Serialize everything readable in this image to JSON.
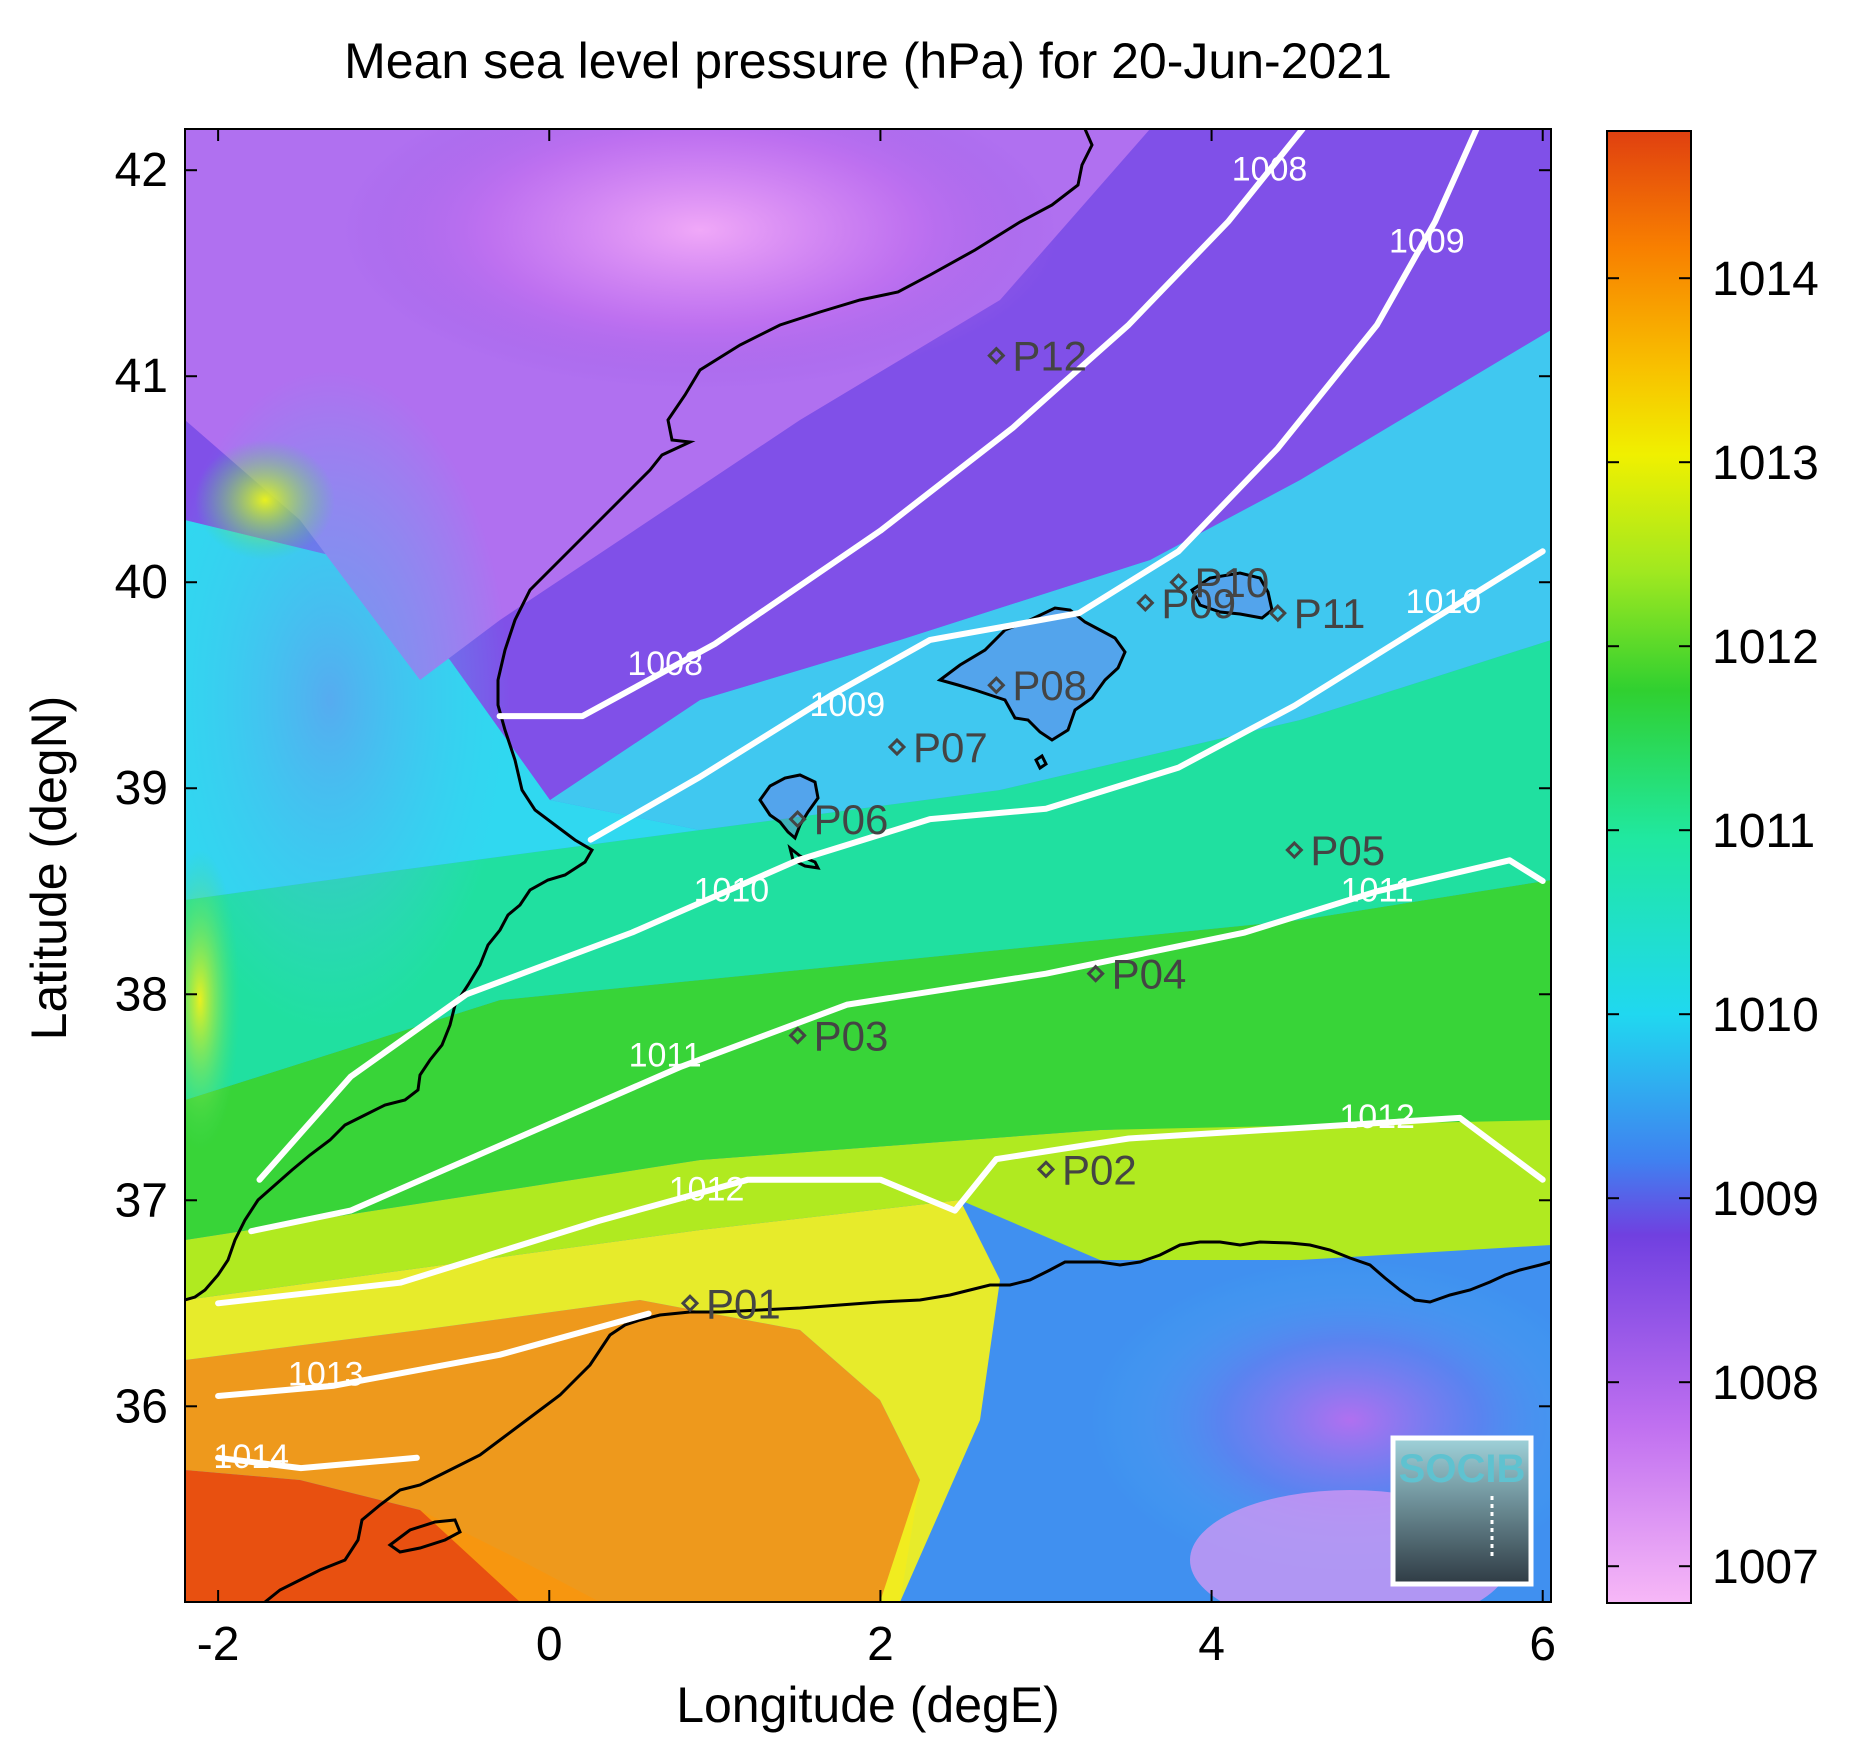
{
  "title": "Mean sea level pressure (hPa) for 20-Jun-2021",
  "xlabel": "Longitude (degE)",
  "ylabel": "Latitude (degN)",
  "x_ticks": [
    "-2",
    "0",
    "2",
    "4",
    "6"
  ],
  "y_ticks": [
    "36",
    "37",
    "38",
    "39",
    "40",
    "41",
    "42"
  ],
  "colorbar_ticks": [
    "1007",
    "1008",
    "1009",
    "1010",
    "1011",
    "1012",
    "1013",
    "1014"
  ],
  "logo_text": "SOCIB",
  "colors": {
    "contour": "#ffffff",
    "coastline": "#000000",
    "station": "#444444",
    "colormap": [
      "#f7b8f7",
      "#c070f0",
      "#7040e0",
      "#4080f0",
      "#20e0f0",
      "#20e8a0",
      "#30d030",
      "#a0e820",
      "#f0f000",
      "#f8c000",
      "#f88000",
      "#e04010"
    ]
  },
  "chart_data": {
    "type": "map",
    "xlim": [
      -2.2,
      6.05
    ],
    "ylim": [
      35.05,
      42.2
    ],
    "clim": [
      1006.8,
      1014.8
    ],
    "colorbar_ticks": [
      1007,
      1008,
      1009,
      1010,
      1011,
      1012,
      1013,
      1014
    ],
    "stations": [
      {
        "name": "P01",
        "lon": 0.85,
        "lat": 36.5
      },
      {
        "name": "P02",
        "lon": 3.0,
        "lat": 37.15
      },
      {
        "name": "P03",
        "lon": 1.5,
        "lat": 37.8
      },
      {
        "name": "P04",
        "lon": 3.3,
        "lat": 38.1
      },
      {
        "name": "P05",
        "lon": 4.5,
        "lat": 38.7
      },
      {
        "name": "P06",
        "lon": 1.5,
        "lat": 38.85
      },
      {
        "name": "P07",
        "lon": 2.1,
        "lat": 39.2
      },
      {
        "name": "P08",
        "lon": 2.7,
        "lat": 39.5
      },
      {
        "name": "P09",
        "lon": 3.6,
        "lat": 39.9
      },
      {
        "name": "P10",
        "lon": 3.8,
        "lat": 40.0
      },
      {
        "name": "P11",
        "lon": 4.4,
        "lat": 39.85
      },
      {
        "name": "P12",
        "lon": 2.7,
        "lat": 41.1
      }
    ],
    "contours": [
      {
        "level": "1008",
        "points": [
          [
            -0.3,
            39.35
          ],
          [
            0.2,
            39.35
          ],
          [
            1.0,
            39.7
          ],
          [
            2.0,
            40.25
          ],
          [
            2.8,
            40.75
          ],
          [
            3.5,
            41.25
          ],
          [
            4.1,
            41.75
          ],
          [
            4.55,
            42.2
          ]
        ],
        "label_at": [
          [
            0.7,
            39.55
          ],
          [
            4.35,
            41.95
          ]
        ]
      },
      {
        "name": "1009",
        "level": "1009",
        "points": [
          [
            0.25,
            38.75
          ],
          [
            0.9,
            39.05
          ],
          [
            1.7,
            39.45
          ],
          [
            2.3,
            39.72
          ],
          [
            3.2,
            39.85
          ],
          [
            3.8,
            40.15
          ],
          [
            4.4,
            40.65
          ],
          [
            5.0,
            41.25
          ],
          [
            5.35,
            41.75
          ],
          [
            5.6,
            42.2
          ]
        ],
        "label_at": [
          [
            1.8,
            39.35
          ],
          [
            5.3,
            41.6
          ]
        ]
      },
      {
        "level": "1010",
        "points": [
          [
            -1.75,
            37.1
          ],
          [
            -1.2,
            37.6
          ],
          [
            -0.5,
            38.0
          ],
          [
            0.5,
            38.3
          ],
          [
            1.5,
            38.65
          ],
          [
            2.3,
            38.85
          ],
          [
            3.0,
            38.9
          ],
          [
            3.8,
            39.1
          ],
          [
            4.5,
            39.4
          ],
          [
            5.2,
            39.75
          ],
          [
            6.0,
            40.15
          ]
        ],
        "label_at": [
          [
            1.1,
            38.45
          ],
          [
            5.4,
            39.85
          ]
        ]
      },
      {
        "level": "1011",
        "points": [
          [
            -1.8,
            36.85
          ],
          [
            -1.2,
            36.95
          ],
          [
            -0.2,
            37.3
          ],
          [
            0.8,
            37.65
          ],
          [
            1.8,
            37.95
          ],
          [
            3.0,
            38.1
          ],
          [
            4.2,
            38.3
          ],
          [
            5.0,
            38.5
          ],
          [
            5.8,
            38.65
          ],
          [
            6.0,
            38.55
          ]
        ],
        "label_at": [
          [
            0.7,
            37.65
          ],
          [
            5.0,
            38.45
          ]
        ]
      },
      {
        "level": "1012",
        "points": [
          [
            -2.0,
            36.5
          ],
          [
            -0.9,
            36.6
          ],
          [
            0.3,
            36.9
          ],
          [
            1.2,
            37.1
          ],
          [
            2.0,
            37.1
          ],
          [
            2.45,
            36.95
          ],
          [
            2.7,
            37.2
          ],
          [
            3.5,
            37.3
          ],
          [
            4.5,
            37.35
          ],
          [
            5.5,
            37.4
          ],
          [
            6.0,
            37.1
          ]
        ],
        "label_at": [
          [
            0.95,
            37.0
          ],
          [
            5.0,
            37.35
          ]
        ]
      },
      {
        "level": "1013",
        "points": [
          [
            -2.0,
            36.05
          ],
          [
            -1.3,
            36.1
          ],
          [
            -0.3,
            36.25
          ],
          [
            0.6,
            36.45
          ]
        ],
        "label_at": [
          [
            -1.35,
            36.1
          ]
        ]
      },
      {
        "level": "1014",
        "points": [
          [
            -2.0,
            35.75
          ],
          [
            -1.5,
            35.7
          ],
          [
            -0.8,
            35.75
          ]
        ],
        "label_at": [
          [
            -1.8,
            35.7
          ]
        ]
      }
    ]
  }
}
